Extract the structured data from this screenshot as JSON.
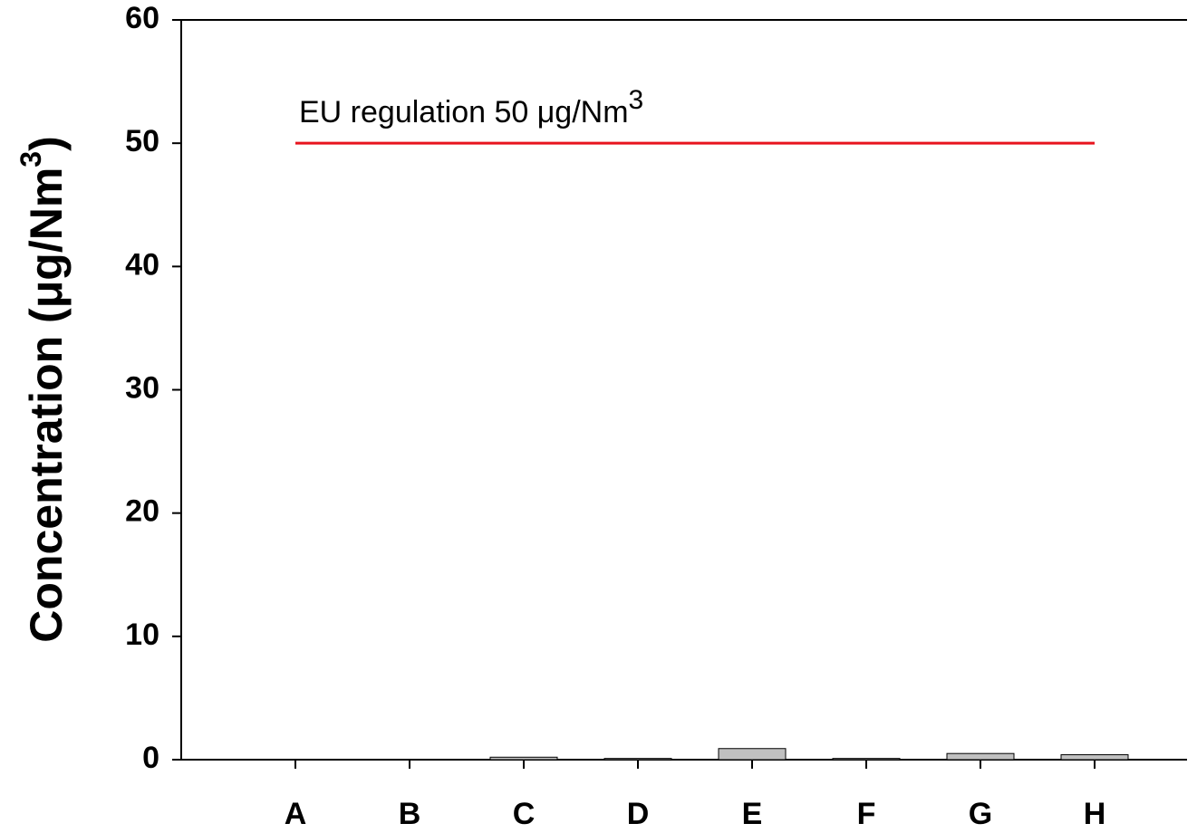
{
  "chart_data": {
    "type": "bar",
    "y_label": [
      "Concentration (μg/Nm",
      "3",
      ")"
    ],
    "categories": [
      "A",
      "B",
      "C",
      "D",
      "E",
      "F",
      "G",
      "H"
    ],
    "values": [
      0,
      0,
      0.2,
      0.1,
      0.9,
      0.1,
      0.5,
      0.4
    ],
    "color": "#c0c0c0",
    "ylim": [
      0,
      60
    ],
    "yticks": [
      0,
      10,
      20,
      30,
      40,
      50,
      60
    ],
    "reference_line": {
      "value": 50,
      "color": "#e8141e",
      "label": [
        "EU regulation 50 μg/Nm",
        "3"
      ]
    }
  }
}
